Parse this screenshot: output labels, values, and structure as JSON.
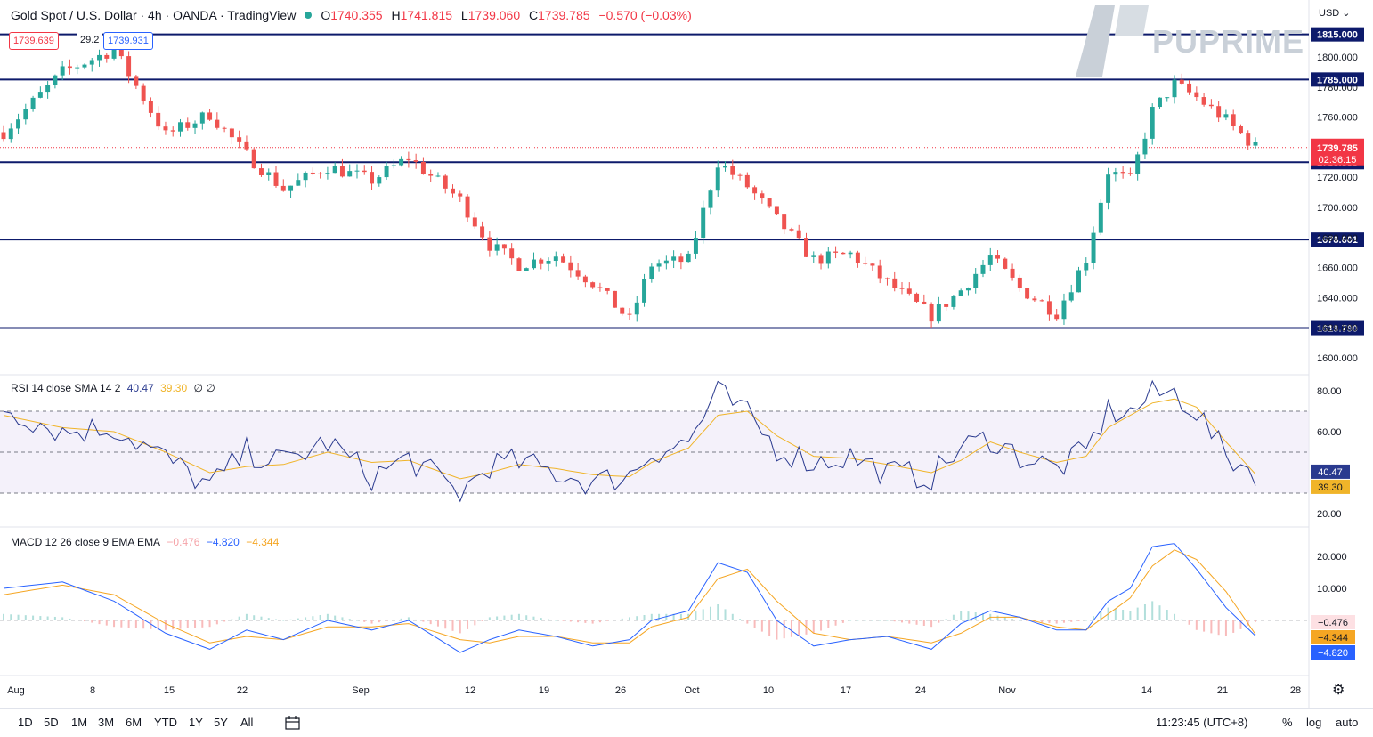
{
  "header": {
    "title": "Gold Spot / U.S. Dollar · 4h · OANDA · TradingView",
    "ohlc": [
      {
        "label": "O",
        "value": "1740.355"
      },
      {
        "label": "H",
        "value": "1741.815"
      },
      {
        "label": "L",
        "value": "1739.060"
      },
      {
        "label": "C",
        "value": "1739.785"
      }
    ],
    "change": "−0.570 (−0.03%)"
  },
  "trade": {
    "sell": "1739.639",
    "spread": "29.2",
    "buy": "1739.931"
  },
  "brand": {
    "name": "PUPRIME"
  },
  "currency": "USD",
  "axis": {
    "price_ticks": [
      "1800.000",
      "1780.000",
      "1760.000",
      "1740.000",
      "1720.000",
      "1700.000",
      "1680.000",
      "1660.000",
      "1640.000",
      "1620.000",
      "1600.000"
    ],
    "rsi_ticks": [
      "80.00",
      "60.00",
      "40.00",
      "20.00"
    ],
    "macd_ticks": [
      "20.000",
      "10.000"
    ],
    "date_ticks": [
      "Aug",
      "8",
      "15",
      "22",
      "Sep",
      "12",
      "19",
      "26",
      "Oct",
      "10",
      "17",
      "24",
      "Nov",
      "14",
      "21",
      "28"
    ]
  },
  "levels": [
    "1815.000",
    "1785.000",
    "1730.000",
    "1678.601",
    "1619.790"
  ],
  "last_price": {
    "value": "1739.785",
    "countdown": "02:36:15"
  },
  "rsi": {
    "title": "RSI 14 close SMA 14 2",
    "value": "40.47",
    "sma": "39.30",
    "extra": "∅ ∅"
  },
  "macd": {
    "title": "MACD 12 26 close 9 EMA EMA",
    "hist": "−0.476",
    "macd": "−4.820",
    "signal": "−4.344"
  },
  "toolbar": {
    "timeframes": [
      "1D",
      "5D",
      "1M",
      "3M",
      "6M",
      "YTD",
      "1Y",
      "5Y",
      "All"
    ],
    "clock": "11:23:45 (UTC+8)",
    "percent": "%",
    "log": "log",
    "auto": "auto"
  },
  "colors": {
    "up": "#26a69a",
    "down": "#ef5350",
    "level": "#0d1a6b",
    "rsi": "#2a3a8f",
    "sma": "#f0b429",
    "macd": "#2962ff",
    "signal": "#f5a623",
    "last": "#f23645"
  },
  "chart_data": [
    {
      "type": "candlestick",
      "title": "Gold Spot / U.S. Dollar · 4h · OANDA",
      "ylim": [
        1590,
        1830
      ],
      "x": [
        "Aug",
        "8",
        "15",
        "22",
        "Sep",
        "12",
        "19",
        "26",
        "Oct",
        "10",
        "17",
        "24",
        "Nov",
        "14",
        "21",
        "28"
      ],
      "close_path": [
        [
          0,
          1750
        ],
        [
          8,
          1790
        ],
        [
          15,
          1805
        ],
        [
          22,
          1748
        ],
        [
          28,
          1762
        ],
        [
          33,
          1735
        ],
        [
          38,
          1712
        ],
        [
          44,
          1727
        ],
        [
          50,
          1718
        ],
        [
          55,
          1733
        ],
        [
          62,
          1705
        ],
        [
          66,
          1675
        ],
        [
          70,
          1662
        ],
        [
          75,
          1668
        ],
        [
          80,
          1650
        ],
        [
          85,
          1625
        ],
        [
          88,
          1662
        ],
        [
          93,
          1665
        ],
        [
          97,
          1730
        ],
        [
          101,
          1714
        ],
        [
          105,
          1692
        ],
        [
          110,
          1665
        ],
        [
          115,
          1669
        ],
        [
          120,
          1650
        ],
        [
          126,
          1628
        ],
        [
          130,
          1645
        ],
        [
          134,
          1667
        ],
        [
          138,
          1646
        ],
        [
          143,
          1630
        ],
        [
          147,
          1666
        ],
        [
          150,
          1724
        ],
        [
          153,
          1718
        ],
        [
          156,
          1764
        ],
        [
          159,
          1782
        ],
        [
          162,
          1773
        ],
        [
          166,
          1758
        ],
        [
          170,
          1740
        ]
      ],
      "horizontal_levels": [
        1815,
        1785,
        1730,
        1678.601,
        1619.79
      ],
      "last": 1739.785
    },
    {
      "type": "line",
      "title": "RSI 14 close SMA 14 2",
      "ylim": [
        15,
        85
      ],
      "series": [
        {
          "name": "RSI",
          "points": [
            [
              0,
              72
            ],
            [
              8,
              60
            ],
            [
              15,
              62
            ],
            [
              22,
              47
            ],
            [
              28,
              33
            ],
            [
              33,
              50
            ],
            [
              38,
              45
            ],
            [
              44,
              55
            ],
            [
              50,
              38
            ],
            [
              55,
              47
            ],
            [
              62,
              30
            ],
            [
              66,
              44
            ],
            [
              70,
              45
            ],
            [
              75,
              40
            ],
            [
              80,
              35
            ],
            [
              85,
              39
            ],
            [
              88,
              50
            ],
            [
              93,
              55
            ],
            [
              97,
              79
            ],
            [
              101,
              68
            ],
            [
              105,
              52
            ],
            [
              110,
              45
            ],
            [
              115,
              48
            ],
            [
              120,
              40
            ],
            [
              126,
              38
            ],
            [
              130,
              52
            ],
            [
              134,
              57
            ],
            [
              138,
              48
            ],
            [
              143,
              42
            ],
            [
              147,
              50
            ],
            [
              150,
              70
            ],
            [
              153,
              69
            ],
            [
              156,
              78
            ],
            [
              159,
              79
            ],
            [
              162,
              70
            ],
            [
              166,
              48
            ],
            [
              170,
              40.47
            ]
          ]
        },
        {
          "name": "SMA",
          "points": [
            [
              0,
              68
            ],
            [
              8,
              62
            ],
            [
              15,
              60
            ],
            [
              22,
              50
            ],
            [
              28,
              40
            ],
            [
              33,
              43
            ],
            [
              38,
              44
            ],
            [
              44,
              50
            ],
            [
              50,
              45
            ],
            [
              55,
              46
            ],
            [
              62,
              37
            ],
            [
              66,
              40
            ],
            [
              70,
              44
            ],
            [
              75,
              42
            ],
            [
              80,
              39
            ],
            [
              85,
              38
            ],
            [
              88,
              45
            ],
            [
              93,
              52
            ],
            [
              97,
              68
            ],
            [
              101,
              70
            ],
            [
              105,
              58
            ],
            [
              110,
              48
            ],
            [
              115,
              47
            ],
            [
              120,
              44
            ],
            [
              126,
              40
            ],
            [
              130,
              46
            ],
            [
              134,
              55
            ],
            [
              138,
              50
            ],
            [
              143,
              45
            ],
            [
              147,
              48
            ],
            [
              150,
              62
            ],
            [
              153,
              68
            ],
            [
              156,
              74
            ],
            [
              159,
              76
            ],
            [
              162,
              72
            ],
            [
              166,
              55
            ],
            [
              170,
              39.3
            ]
          ]
        }
      ]
    },
    {
      "type": "line",
      "title": "MACD 12 26 close 9 EMA EMA",
      "ylim": [
        -13,
        27
      ],
      "series": [
        {
          "name": "MACD",
          "points": [
            [
              0,
              10
            ],
            [
              8,
              12
            ],
            [
              15,
              6
            ],
            [
              22,
              -4
            ],
            [
              28,
              -9
            ],
            [
              33,
              -3
            ],
            [
              38,
              -6
            ],
            [
              44,
              0
            ],
            [
              50,
              -3
            ],
            [
              55,
              0
            ],
            [
              62,
              -10
            ],
            [
              66,
              -6
            ],
            [
              70,
              -3
            ],
            [
              75,
              -5
            ],
            [
              80,
              -8
            ],
            [
              85,
              -6
            ],
            [
              88,
              0
            ],
            [
              93,
              3
            ],
            [
              97,
              18
            ],
            [
              101,
              15
            ],
            [
              105,
              0
            ],
            [
              110,
              -8
            ],
            [
              115,
              -6
            ],
            [
              120,
              -5
            ],
            [
              126,
              -9
            ],
            [
              130,
              -1
            ],
            [
              134,
              3
            ],
            [
              138,
              1
            ],
            [
              143,
              -3
            ],
            [
              147,
              -3
            ],
            [
              150,
              6
            ],
            [
              153,
              10
            ],
            [
              156,
              23
            ],
            [
              159,
              24
            ],
            [
              162,
              16
            ],
            [
              166,
              4
            ],
            [
              170,
              -4.82
            ]
          ]
        },
        {
          "name": "Signal",
          "points": [
            [
              0,
              8
            ],
            [
              8,
              11
            ],
            [
              15,
              8
            ],
            [
              22,
              -1
            ],
            [
              28,
              -7
            ],
            [
              33,
              -5
            ],
            [
              38,
              -6
            ],
            [
              44,
              -2
            ],
            [
              50,
              -2
            ],
            [
              55,
              -1
            ],
            [
              62,
              -6
            ],
            [
              66,
              -7
            ],
            [
              70,
              -5
            ],
            [
              75,
              -5
            ],
            [
              80,
              -7
            ],
            [
              85,
              -7
            ],
            [
              88,
              -2
            ],
            [
              93,
              1
            ],
            [
              97,
              13
            ],
            [
              101,
              16
            ],
            [
              105,
              6
            ],
            [
              110,
              -4
            ],
            [
              115,
              -6
            ],
            [
              120,
              -5
            ],
            [
              126,
              -7
            ],
            [
              130,
              -4
            ],
            [
              134,
              1
            ],
            [
              138,
              1
            ],
            [
              143,
              -2
            ],
            [
              147,
              -3
            ],
            [
              150,
              2
            ],
            [
              153,
              7
            ],
            [
              156,
              17
            ],
            [
              159,
              22
            ],
            [
              162,
              19
            ],
            [
              166,
              9
            ],
            [
              170,
              -4.344
            ]
          ]
        }
      ],
      "histogram_last": -0.476
    }
  ]
}
